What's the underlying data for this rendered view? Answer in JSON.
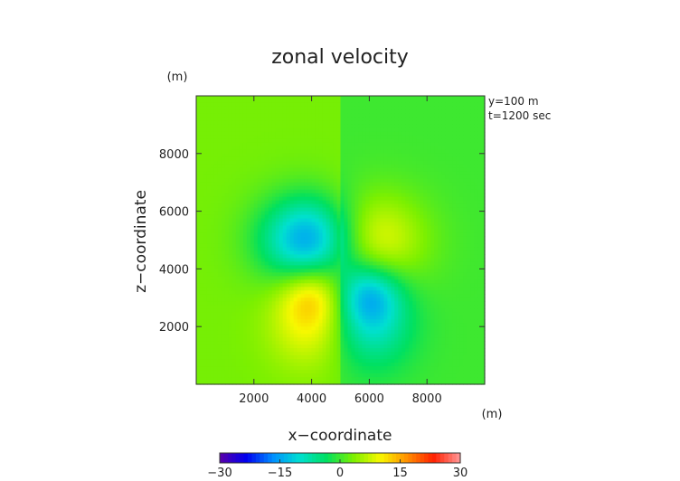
{
  "chart_data": {
    "type": "heatmap",
    "title": "zonal velocity",
    "xlabel": "x−coordinate",
    "ylabel": "z−coordinate",
    "x_unit": "(m)",
    "y_unit": "(m)",
    "annotations": [
      "y=100 m",
      "t=1200 sec"
    ],
    "xlim": [
      0,
      10000
    ],
    "ylim": [
      0,
      10000
    ],
    "x_ticks": [
      2000,
      4000,
      6000,
      8000
    ],
    "y_ticks": [
      2000,
      4000,
      6000,
      8000
    ],
    "x_tick_labels": [
      "2000",
      "4000",
      "6000",
      "8000"
    ],
    "y_tick_labels": [
      "2000",
      "4000",
      "6000",
      "8000"
    ],
    "colorbar": {
      "min": -30,
      "max": 30,
      "ticks": [
        -30,
        -15,
        0,
        15,
        30
      ],
      "tick_labels": [
        "−30",
        "−15",
        "0",
        "15",
        "30"
      ],
      "colors": [
        "#5a00a8",
        "#0000f0",
        "#0090ff",
        "#00e0d0",
        "#00e060",
        "#7cf000",
        "#f8f800",
        "#ff9000",
        "#ff2000",
        "#ff9898"
      ]
    },
    "background": {
      "left_half": 3,
      "right_half": 0
    },
    "features": [
      {
        "x": 4000,
        "z": 5000,
        "value": -20,
        "rx": 1700,
        "rz": 1500
      },
      {
        "x": 6000,
        "z": 5000,
        "value": 11,
        "rx": 1800,
        "rz": 1600
      },
      {
        "x": 4000,
        "z": 3150,
        "value": 8,
        "rx": 1100,
        "rz": 1100
      },
      {
        "x": 6000,
        "z": 3150,
        "value": -11,
        "rx": 1100,
        "rz": 1100
      },
      {
        "x": 3900,
        "z": 2000,
        "value": 6,
        "rx": 1400,
        "rz": 1500
      },
      {
        "x": 6100,
        "z": 2000,
        "value": -8,
        "rx": 1400,
        "rz": 1500
      }
    ]
  }
}
